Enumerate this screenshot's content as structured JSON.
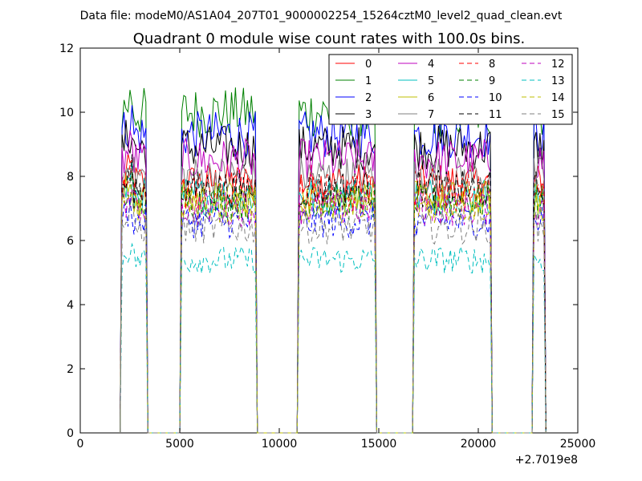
{
  "chart_data": {
    "type": "line",
    "suptitle": "Data file: modeM0/AS1A04_207T01_9000002254_15264cztM0_level2_quad_clean.evt",
    "title": "Quadrant 0 module wise count rates with 100.0s bins.",
    "xlabel": "",
    "ylabel": "",
    "x_offset_label": "+2.7019e8",
    "xlim": [
      0,
      25000
    ],
    "ylim": [
      0,
      12
    ],
    "xticks": [
      0,
      5000,
      10000,
      15000,
      20000,
      25000
    ],
    "xtick_labels": [
      "0",
      "5000",
      "10000",
      "15000",
      "20000",
      "25000"
    ],
    "yticks": [
      0,
      2,
      4,
      6,
      8,
      10,
      12
    ],
    "ytick_labels": [
      "0",
      "2",
      "4",
      "6",
      "8",
      "10",
      "12"
    ],
    "grid": false,
    "legend_position": "top-right",
    "legend_columns": 4,
    "bin_size_s": 100,
    "on_segments": [
      [
        2100,
        3300
      ],
      [
        5100,
        8800
      ],
      [
        11000,
        14800
      ],
      [
        16800,
        20600
      ],
      [
        22800,
        23300
      ]
    ],
    "series": [
      {
        "name": "0",
        "color": "#ff0000",
        "dash": "solid",
        "level": 7.8
      },
      {
        "name": "1",
        "color": "#008000",
        "dash": "solid",
        "level": 10.0
      },
      {
        "name": "2",
        "color": "#0000ff",
        "dash": "solid",
        "level": 9.3
      },
      {
        "name": "3",
        "color": "#000000",
        "dash": "solid",
        "level": 8.9
      },
      {
        "name": "4",
        "color": "#bf00bf",
        "dash": "solid",
        "level": 8.5
      },
      {
        "name": "5",
        "color": "#00bfbf",
        "dash": "solid",
        "level": 7.4
      },
      {
        "name": "6",
        "color": "#bfbf00",
        "dash": "solid",
        "level": 7.3
      },
      {
        "name": "7",
        "color": "#808080",
        "dash": "solid",
        "level": 8.0
      },
      {
        "name": "8",
        "color": "#ff0000",
        "dash": "dashed",
        "level": 7.5
      },
      {
        "name": "9",
        "color": "#008000",
        "dash": "dashed",
        "level": 7.2
      },
      {
        "name": "10",
        "color": "#0000ff",
        "dash": "dashed",
        "level": 6.6
      },
      {
        "name": "11",
        "color": "#000000",
        "dash": "dashed",
        "level": 7.6
      },
      {
        "name": "12",
        "color": "#bf00bf",
        "dash": "dashed",
        "level": 7.0
      },
      {
        "name": "13",
        "color": "#00bfbf",
        "dash": "dashed",
        "level": 5.4
      },
      {
        "name": "14",
        "color": "#bfbf00",
        "dash": "dashed",
        "level": 7.1
      },
      {
        "name": "15",
        "color": "#808080",
        "dash": "dashed",
        "level": 6.4
      }
    ]
  }
}
